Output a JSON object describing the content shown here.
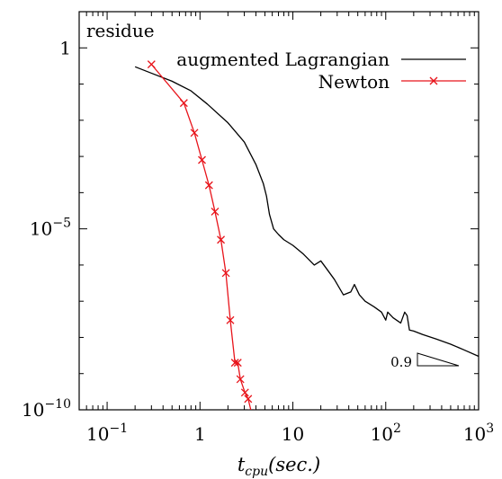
{
  "chart_data": {
    "type": "line",
    "title": "",
    "ylabel": "residue",
    "xlabel_main": "t",
    "xlabel_sub": "cpu",
    "xlabel_unit": "(sec.)",
    "xscale": "log",
    "yscale": "log",
    "xlim": [
      0.05,
      1000
    ],
    "ylim": [
      1e-10,
      10
    ],
    "grid": false,
    "legend_position": "top-right",
    "x_ticks": [
      {
        "value": 0.1,
        "base": "10",
        "exp": "−1"
      },
      {
        "value": 1,
        "base": "1",
        "exp": ""
      },
      {
        "value": 10,
        "base": "10",
        "exp": ""
      },
      {
        "value": 100,
        "base": "10",
        "exp": "2"
      },
      {
        "value": 1000,
        "base": "10",
        "exp": "3"
      }
    ],
    "y_ticks": [
      {
        "value": 1,
        "base": "1",
        "exp": ""
      },
      {
        "value": 1e-05,
        "base": "10",
        "exp": "−5"
      },
      {
        "value": 1e-10,
        "base": "10",
        "exp": "−10"
      }
    ],
    "series": [
      {
        "name": "augmented Lagrangian",
        "color": "#000000",
        "marker": "none",
        "x": [
          0.2,
          0.3,
          0.5,
          0.8,
          1.2,
          2.0,
          3.0,
          4.0,
          4.8,
          5.2,
          5.6,
          6.2,
          7.0,
          8.0,
          10.0,
          13.0,
          17.0,
          20.0,
          23.0,
          28.0,
          35.0,
          42.0,
          46.0,
          52.0,
          60.0,
          75.0,
          90.0,
          100.0,
          105.0,
          120.0,
          145.0,
          160.0,
          170.0,
          180.0,
          200.0,
          250.0,
          350.0,
          500.0,
          700.0,
          1000.0
        ],
        "y": [
          0.3,
          0.2,
          0.12,
          0.065,
          0.028,
          0.0085,
          0.0025,
          0.0006,
          0.00018,
          8e-05,
          2.5e-05,
          1e-05,
          7e-06,
          5e-06,
          3.5e-06,
          2e-06,
          1e-06,
          1.3e-06,
          8e-07,
          4e-07,
          1.5e-07,
          1.8e-07,
          2.9e-07,
          1.5e-07,
          1e-07,
          7e-08,
          5e-08,
          3e-08,
          5e-08,
          3.5e-08,
          2.5e-08,
          5e-08,
          4e-08,
          1.6e-08,
          1.5e-08,
          1.2e-08,
          9e-09,
          6.5e-09,
          4.5e-09,
          3e-09
        ]
      },
      {
        "name": "Newton",
        "color": "#e8141b",
        "marker": "x",
        "x": [
          0.3,
          0.67,
          0.87,
          1.05,
          1.25,
          1.45,
          1.68,
          1.9,
          2.12,
          2.38,
          2.55,
          2.72,
          3.05,
          3.3,
          3.6
        ],
        "y": [
          0.35,
          0.03,
          0.0045,
          0.0008,
          0.00016,
          3e-05,
          5e-06,
          6e-07,
          3e-08,
          2e-09,
          2e-09,
          7e-10,
          3e-10,
          2e-10,
          8e-11
        ]
      }
    ],
    "annotation": {
      "text": "0.9",
      "x": 340.0,
      "y": 1.6e-09
    }
  }
}
